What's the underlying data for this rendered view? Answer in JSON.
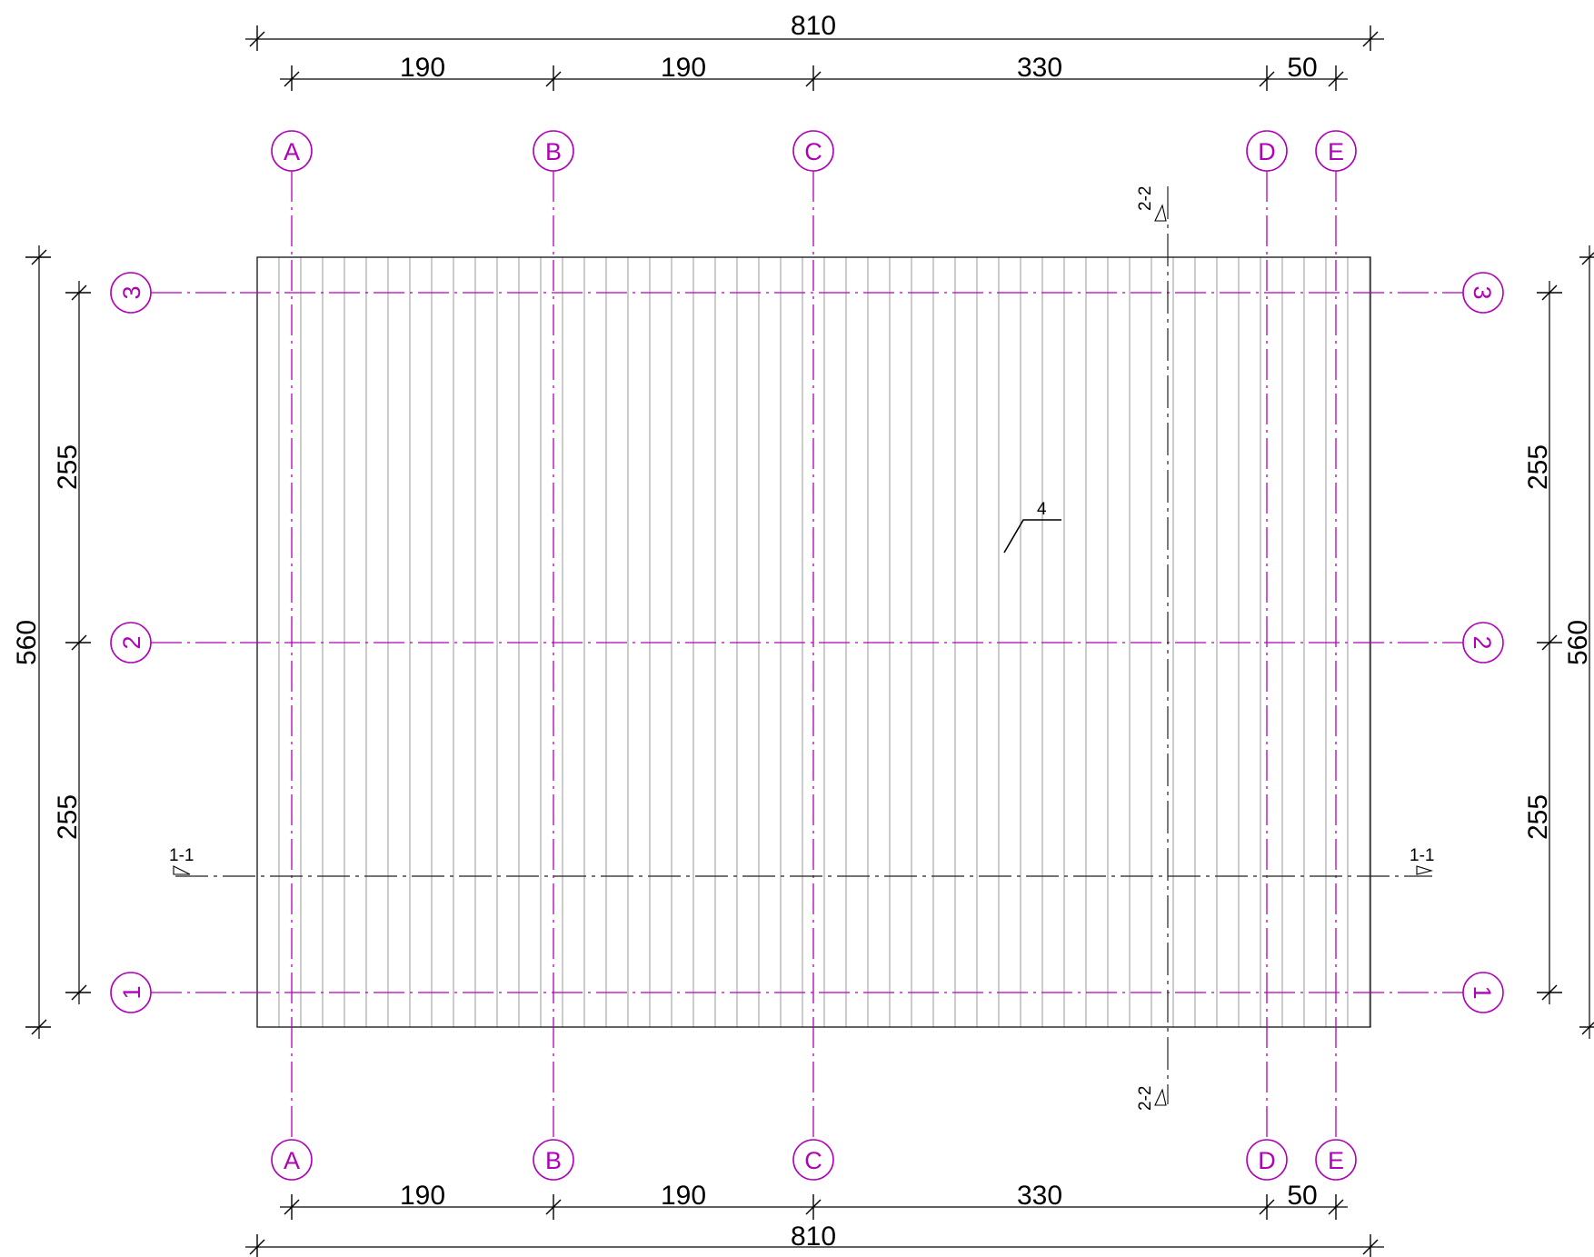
{
  "top_dimensions": {
    "overall": "810",
    "segments": [
      "190",
      "190",
      "330",
      "50"
    ]
  },
  "bottom_dimensions": {
    "overall": "810",
    "segments": [
      "190",
      "190",
      "330",
      "50"
    ]
  },
  "left_dimensions": {
    "overall": "560",
    "segments": [
      "255",
      "255"
    ]
  },
  "right_dimensions": {
    "overall": "560",
    "segments": [
      "255",
      "255"
    ]
  },
  "column_axes": [
    "A",
    "B",
    "C",
    "D",
    "E"
  ],
  "row_axes": [
    "3",
    "2",
    "1"
  ],
  "section_marks": {
    "horizontal": "1-1",
    "vertical": "2-2"
  },
  "callout": "4",
  "colors": {
    "axis": "#b000b8",
    "lines": "#000000",
    "boards": "#9a9a9a"
  }
}
